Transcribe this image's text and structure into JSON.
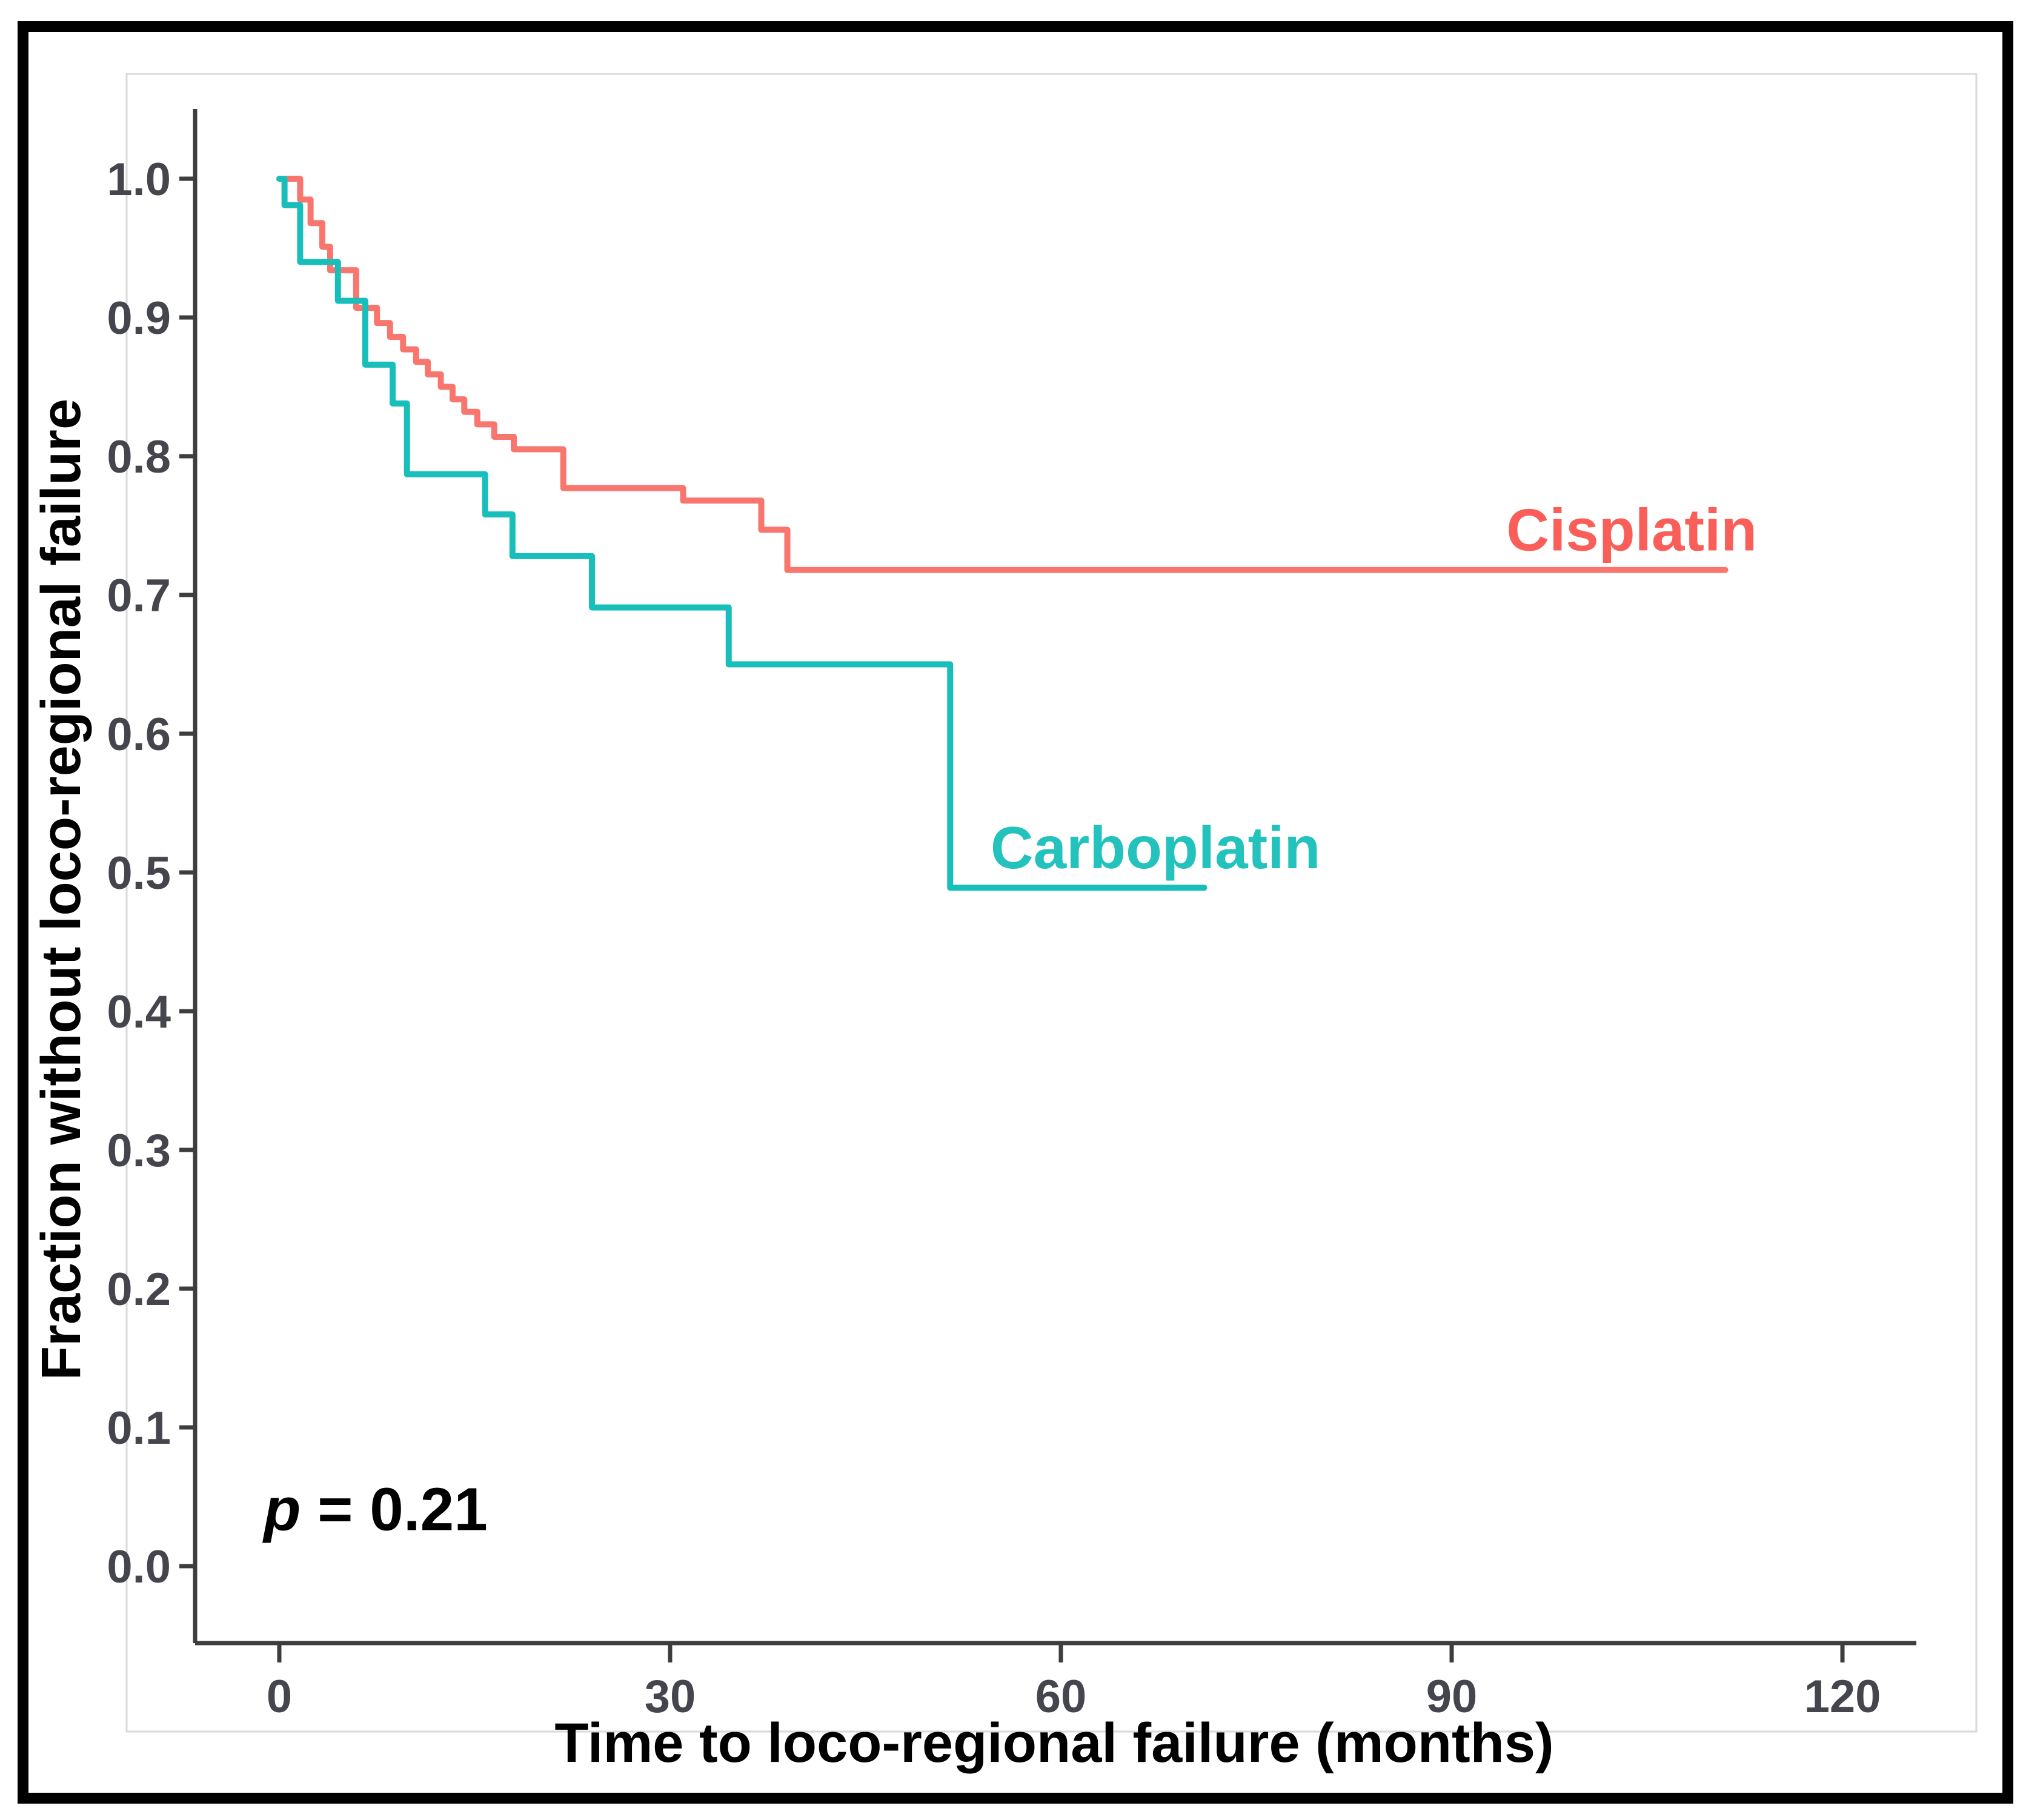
{
  "figure": {
    "background_color": "#ffffff",
    "outer_border_color": "#000000",
    "panel_border_color": "#d9d9d9",
    "axis_color": "#3d3d3d"
  },
  "chart_data": {
    "type": "line",
    "subtype": "kaplan-meier-step",
    "title": "",
    "xlabel": "Time to loco-regional failure (months)",
    "ylabel": "Fraction without loco-regional failure",
    "xlim": [
      0,
      126
    ],
    "ylim": [
      0.0,
      1.0
    ],
    "grid": false,
    "legend_position": "inline-curve-labels",
    "x_ticks": [
      {
        "value": 0,
        "label": "0"
      },
      {
        "value": 30,
        "label": "30"
      },
      {
        "value": 60,
        "label": "60"
      },
      {
        "value": 90,
        "label": "90"
      },
      {
        "value": 120,
        "label": "120"
      }
    ],
    "y_ticks": [
      {
        "value": 0.0,
        "label": "0.0"
      },
      {
        "value": 0.1,
        "label": "0.1"
      },
      {
        "value": 0.2,
        "label": "0.2"
      },
      {
        "value": 0.3,
        "label": "0.3"
      },
      {
        "value": 0.4,
        "label": "0.4"
      },
      {
        "value": 0.5,
        "label": "0.5"
      },
      {
        "value": 0.6,
        "label": "0.6"
      },
      {
        "value": 0.7,
        "label": "0.7"
      },
      {
        "value": 0.8,
        "label": "0.8"
      },
      {
        "value": 0.9,
        "label": "0.9"
      },
      {
        "value": 1.0,
        "label": "1.0"
      }
    ],
    "annotation": {
      "symbol": "p",
      "rest": " = 0.21",
      "x_months": -1.2,
      "y_fraction": 0.026
    },
    "series": [
      {
        "name": "Cisplatin",
        "color": "#F8766D",
        "label_color": "#F95F58",
        "label_x_months": 94.2,
        "label_y_fraction": 0.732,
        "end_time_months": 111,
        "steps_time_fraction": [
          [
            0,
            1.0
          ],
          [
            1.6,
            0.985
          ],
          [
            2.4,
            0.968
          ],
          [
            3.3,
            0.951
          ],
          [
            3.9,
            0.934
          ],
          [
            5.9,
            0.907
          ],
          [
            7.5,
            0.896
          ],
          [
            8.5,
            0.886
          ],
          [
            9.5,
            0.877
          ],
          [
            10.5,
            0.868
          ],
          [
            11.4,
            0.859
          ],
          [
            12.4,
            0.85
          ],
          [
            13.3,
            0.841
          ],
          [
            14.2,
            0.832
          ],
          [
            15.2,
            0.823
          ],
          [
            16.5,
            0.814
          ],
          [
            18.0,
            0.805
          ],
          [
            21.8,
            0.777
          ],
          [
            31.0,
            0.768
          ],
          [
            37.0,
            0.747
          ],
          [
            39.0,
            0.718
          ]
        ]
      },
      {
        "name": "Carboplatin",
        "color": "#18BFBA",
        "label_color": "#23C2BD",
        "label_x_months": 54.6,
        "label_y_fraction": 0.503,
        "end_time_months": 71,
        "steps_time_fraction": [
          [
            0,
            1.0
          ],
          [
            0.4,
            0.981
          ],
          [
            1.6,
            0.94
          ],
          [
            4.5,
            0.912
          ],
          [
            6.6,
            0.866
          ],
          [
            8.7,
            0.838
          ],
          [
            9.8,
            0.787
          ],
          [
            15.8,
            0.758
          ],
          [
            17.9,
            0.728
          ],
          [
            24.0,
            0.691
          ],
          [
            34.5,
            0.65
          ],
          [
            51.5,
            0.489
          ]
        ]
      }
    ]
  }
}
